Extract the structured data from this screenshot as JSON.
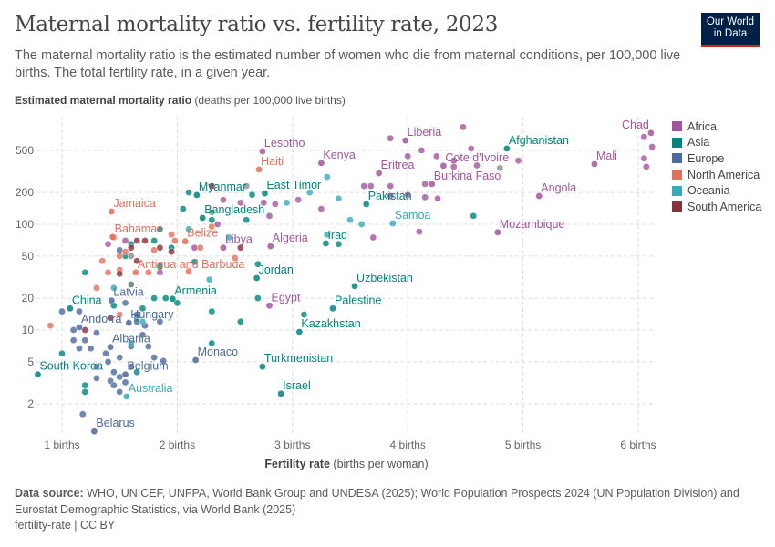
{
  "header": {
    "title": "Maternal mortality ratio vs. fertility rate, 2023",
    "subtitle": "The maternal mortality ratio is the estimated number of women who die from maternal conditions, per 100,000 live births. The total fertility rate, in a given year.",
    "logo": "Our World in Data"
  },
  "footer": {
    "source_label": "Data source:",
    "source": "WHO, UNICEF, UNFPA, World Bank Group and UNDESA (2025); World Population Prospects 2024 (UN Population Division) and Eurostat Demographic Statistics, via World Bank (2025)",
    "license": "fertility-rate | CC BY"
  },
  "chart_data": {
    "type": "scatter",
    "title": "Maternal mortality ratio vs. fertility rate, 2023",
    "ylabel_bold": "Estimated maternal mortality ratio",
    "ylabel_unit": "(deaths per 100,000 live births)",
    "xlabel_bold": "Fertility rate",
    "xlabel_unit": "(births per woman)",
    "x_scale": "linear",
    "y_scale": "log",
    "xlim": [
      0.7,
      6.15
    ],
    "ylim": [
      1,
      900
    ],
    "grid": true,
    "legend": "right",
    "x_ticks": [
      {
        "v": 1,
        "label": "1 births"
      },
      {
        "v": 2,
        "label": "2 births"
      },
      {
        "v": 3,
        "label": "3 births"
      },
      {
        "v": 4,
        "label": "4 births"
      },
      {
        "v": 5,
        "label": "5 births"
      },
      {
        "v": 6,
        "label": "6 births"
      }
    ],
    "y_ticks": [
      {
        "v": 500,
        "label": "500"
      },
      {
        "v": 200,
        "label": "200"
      },
      {
        "v": 100,
        "label": "100"
      },
      {
        "v": 50,
        "label": "50"
      },
      {
        "v": 20,
        "label": "20"
      },
      {
        "v": 10,
        "label": "10"
      },
      {
        "v": 5,
        "label": "5"
      },
      {
        "v": 2,
        "label": "2"
      }
    ],
    "colors": {
      "Africa": "#a2559c",
      "Asia": "#00847e",
      "Europe": "#4c6a9c",
      "North America": "#e56e5a",
      "Oceania": "#38aaba",
      "South America": "#883039",
      "Other": "#8c8c8c"
    },
    "legend_entries": [
      "Africa",
      "Asia",
      "Europe",
      "North America",
      "Oceania",
      "South America"
    ],
    "labeled_points": [
      {
        "name": "Chad",
        "region": "Africa",
        "x": 6.11,
        "y": 730
      },
      {
        "name": "Mali",
        "region": "Africa",
        "x": 5.62,
        "y": 371
      },
      {
        "name": "Afghanistan",
        "region": "Asia",
        "x": 4.86,
        "y": 520
      },
      {
        "name": "Liberia",
        "region": "Africa",
        "x": 3.98,
        "y": 620
      },
      {
        "name": "Lesotho",
        "region": "Africa",
        "x": 2.74,
        "y": 490
      },
      {
        "name": "Haiti",
        "region": "North America",
        "x": 2.71,
        "y": 329
      },
      {
        "name": "Kenya",
        "region": "Africa",
        "x": 3.25,
        "y": 379
      },
      {
        "name": "Eritrea",
        "region": "Africa",
        "x": 3.75,
        "y": 304
      },
      {
        "name": "Cote d'Ivoire",
        "region": "Africa",
        "x": 4.31,
        "y": 357
      },
      {
        "name": "Burkina Faso",
        "region": "Africa",
        "x": 4.21,
        "y": 240
      },
      {
        "name": "Pakistan",
        "region": "Asia",
        "x": 3.64,
        "y": 155
      },
      {
        "name": "Samoa",
        "region": "Oceania",
        "x": 3.87,
        "y": 102
      },
      {
        "name": "Angola",
        "region": "Africa",
        "x": 5.14,
        "y": 185
      },
      {
        "name": "Mozambique",
        "region": "Africa",
        "x": 4.78,
        "y": 84
      },
      {
        "name": "East Timor",
        "region": "Asia",
        "x": 2.76,
        "y": 196
      },
      {
        "name": "Algeria",
        "region": "Africa",
        "x": 2.81,
        "y": 62
      },
      {
        "name": "Iraq",
        "region": "Asia",
        "x": 3.29,
        "y": 66
      },
      {
        "name": "Jordan",
        "region": "Asia",
        "x": 2.69,
        "y": 31
      },
      {
        "name": "Egypt",
        "region": "Africa",
        "x": 2.8,
        "y": 17
      },
      {
        "name": "Uzbekistan",
        "region": "Asia",
        "x": 3.54,
        "y": 26
      },
      {
        "name": "Palestine",
        "region": "Asia",
        "x": 3.35,
        "y": 16
      },
      {
        "name": "Kazakhstan",
        "region": "Asia",
        "x": 3.06,
        "y": 9.6
      },
      {
        "name": "Turkmenistan",
        "region": "Asia",
        "x": 2.74,
        "y": 4.5
      },
      {
        "name": "Israel",
        "region": "Asia",
        "x": 2.9,
        "y": 2.5
      },
      {
        "name": "Monaco",
        "region": "Europe",
        "x": 2.16,
        "y": 5.2
      },
      {
        "name": "Myanmar",
        "region": "Asia",
        "x": 2.17,
        "y": 189
      },
      {
        "name": "Bangladesh",
        "region": "Asia",
        "x": 2.22,
        "y": 115
      },
      {
        "name": "Jamaica",
        "region": "North America",
        "x": 1.43,
        "y": 132
      },
      {
        "name": "Bahamas",
        "region": "North America",
        "x": 1.44,
        "y": 76
      },
      {
        "name": "Belize",
        "region": "North America",
        "x": 2.07,
        "y": 69
      },
      {
        "name": "Libya",
        "region": "Africa",
        "x": 2.4,
        "y": 60
      },
      {
        "name": "Antigua and Barbuda",
        "region": "North America",
        "x": 1.64,
        "y": 35
      },
      {
        "name": "Armenia",
        "region": "Asia",
        "x": 1.96,
        "y": 19.7
      },
      {
        "name": "China",
        "region": "Asia",
        "x": 1.07,
        "y": 16
      },
      {
        "name": "Latvia",
        "region": "Europe",
        "x": 1.43,
        "y": 19
      },
      {
        "name": "Andorra",
        "region": "Europe",
        "x": 1.15,
        "y": 10.6
      },
      {
        "name": "Hungary",
        "region": "Europe",
        "x": 1.58,
        "y": 11.7
      },
      {
        "name": "Albania",
        "region": "Europe",
        "x": 1.42,
        "y": 6.9
      },
      {
        "name": "South Korea",
        "region": "Asia",
        "x": 0.79,
        "y": 3.8
      },
      {
        "name": "Belgium",
        "region": "Europe",
        "x": 1.55,
        "y": 3.8
      },
      {
        "name": "Australia",
        "region": "Oceania",
        "x": 1.56,
        "y": 2.35
      },
      {
        "name": "Belarus",
        "region": "Europe",
        "x": 1.28,
        "y": 1.1
      }
    ],
    "other_points": {
      "Africa": [
        [
          4.48,
          830
        ],
        [
          3.85,
          650
        ],
        [
          4.12,
          500
        ],
        [
          4.55,
          520
        ],
        [
          4.0,
          440
        ],
        [
          4.25,
          440
        ],
        [
          4.4,
          350
        ],
        [
          4.4,
          400
        ],
        [
          4.96,
          400
        ],
        [
          6.05,
          670
        ],
        [
          6.12,
          540
        ],
        [
          6.05,
          420
        ],
        [
          6.07,
          350
        ],
        [
          4.6,
          360
        ],
        [
          3.62,
          230
        ],
        [
          3.68,
          230
        ],
        [
          3.85,
          230
        ],
        [
          4.15,
          240
        ],
        [
          4.26,
          175
        ],
        [
          4.0,
          190
        ],
        [
          4.15,
          180
        ],
        [
          3.85,
          185
        ],
        [
          2.75,
          160
        ],
        [
          2.8,
          120
        ],
        [
          3.25,
          140
        ],
        [
          2.55,
          160
        ],
        [
          2.4,
          170
        ],
        [
          3.7,
          75
        ],
        [
          4.1,
          85
        ],
        [
          2.35,
          100
        ],
        [
          2.15,
          60
        ],
        [
          2.85,
          155
        ],
        [
          1.55,
          70
        ],
        [
          1.85,
          35
        ],
        [
          1.4,
          65
        ],
        [
          3.05,
          170
        ]
      ],
      "Asia": [
        [
          2.65,
          190
        ],
        [
          2.6,
          110
        ],
        [
          2.3,
          110
        ],
        [
          2.05,
          140
        ],
        [
          2.1,
          200
        ],
        [
          1.6,
          65
        ],
        [
          1.8,
          70
        ],
        [
          1.95,
          60
        ],
        [
          1.85,
          90
        ],
        [
          1.2,
          35
        ],
        [
          1.85,
          40
        ],
        [
          1.6,
          27
        ],
        [
          1.8,
          20
        ],
        [
          1.9,
          20
        ],
        [
          2.0,
          18
        ],
        [
          2.3,
          15
        ],
        [
          2.55,
          12
        ],
        [
          2.7,
          20
        ],
        [
          3.1,
          14
        ],
        [
          4.57,
          120
        ],
        [
          2.15,
          44
        ],
        [
          1.7,
          16
        ],
        [
          1.45,
          17
        ],
        [
          1.0,
          6
        ],
        [
          1.2,
          3
        ],
        [
          1.2,
          2.6
        ],
        [
          1.65,
          4
        ],
        [
          2.3,
          7.5
        ],
        [
          1.55,
          50
        ],
        [
          2.7,
          42
        ],
        [
          3.4,
          65
        ],
        [
          1.65,
          13
        ]
      ],
      "Europe": [
        [
          1.5,
          57
        ],
        [
          1.15,
          15
        ],
        [
          1.1,
          8
        ],
        [
          1.2,
          8
        ],
        [
          1.15,
          6.7
        ],
        [
          1.25,
          6.7
        ],
        [
          1.3,
          9.4
        ],
        [
          1.4,
          5
        ],
        [
          1.45,
          4
        ],
        [
          1.5,
          5.5
        ],
        [
          1.5,
          3.6
        ],
        [
          1.55,
          3.2
        ],
        [
          1.6,
          4.5
        ],
        [
          1.65,
          12
        ],
        [
          1.72,
          11
        ],
        [
          1.75,
          7
        ],
        [
          1.8,
          5.5
        ],
        [
          1.88,
          5.1
        ],
        [
          1.85,
          12
        ],
        [
          1.55,
          18
        ],
        [
          1.65,
          14
        ],
        [
          1.3,
          3.5
        ],
        [
          1.42,
          3.3
        ],
        [
          1.5,
          2.6
        ],
        [
          1.18,
          1.6
        ],
        [
          1.0,
          15
        ],
        [
          1.3,
          4.5
        ],
        [
          1.38,
          6
        ],
        [
          1.45,
          3
        ],
        [
          1.6,
          7
        ],
        [
          1.1,
          10
        ],
        [
          1.7,
          9
        ]
      ],
      "North America": [
        [
          0.9,
          11
        ],
        [
          1.35,
          45
        ],
        [
          1.4,
          35
        ],
        [
          1.45,
          75
        ],
        [
          1.55,
          55
        ],
        [
          1.5,
          37
        ],
        [
          1.8,
          57
        ],
        [
          1.95,
          80
        ],
        [
          1.98,
          70
        ],
        [
          2.3,
          95
        ],
        [
          2.2,
          60
        ],
        [
          2.5,
          48
        ],
        [
          1.75,
          35
        ],
        [
          1.5,
          14
        ],
        [
          2.1,
          36
        ],
        [
          1.3,
          25
        ],
        [
          1.5,
          50
        ]
      ],
      "Oceania": [
        [
          2.1,
          90
        ],
        [
          3.15,
          200
        ],
        [
          3.3,
          280
        ],
        [
          3.5,
          110
        ],
        [
          3.4,
          175
        ],
        [
          3.6,
          100
        ],
        [
          2.95,
          160
        ],
        [
          2.45,
          75
        ],
        [
          3.3,
          80
        ],
        [
          2.28,
          30
        ],
        [
          1.6,
          7.5
        ],
        [
          1.45,
          25
        ],
        [
          1.7,
          12
        ]
      ],
      "South America": [
        [
          2.3,
          230
        ],
        [
          1.6,
          60
        ],
        [
          1.65,
          70
        ],
        [
          1.65,
          45
        ],
        [
          1.72,
          70
        ],
        [
          1.85,
          60
        ],
        [
          1.95,
          55
        ],
        [
          2.55,
          60
        ],
        [
          1.5,
          34
        ],
        [
          1.42,
          13
        ],
        [
          1.2,
          10
        ]
      ],
      "Other": [
        [
          4.8,
          340
        ],
        [
          2.6,
          230
        ],
        [
          1.6,
          50
        ],
        [
          2.3,
          130
        ],
        [
          1.6,
          27
        ]
      ]
    }
  }
}
